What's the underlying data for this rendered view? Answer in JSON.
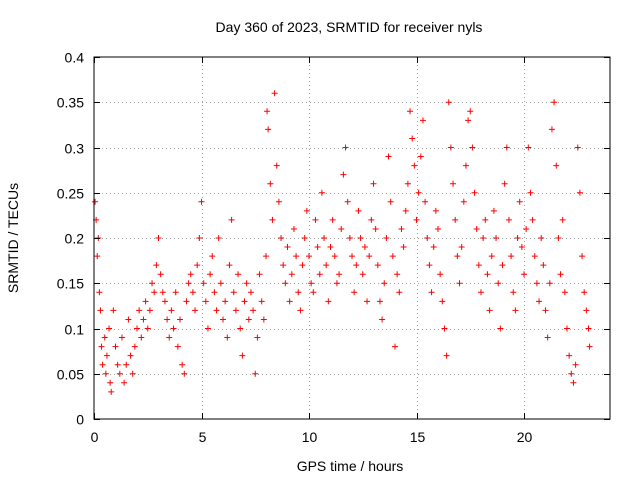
{
  "chart_data": {
    "type": "scatter",
    "title": "Day 360 of 2023, SRMTID for receiver nyls",
    "xlabel": "GPS time / hours",
    "ylabel": "SRMTID / TECUs",
    "xlim": [
      0,
      24
    ],
    "ylim": [
      0,
      0.4
    ],
    "xticks": [
      0,
      5,
      10,
      15,
      20
    ],
    "xtick_labels": [
      "0",
      "5",
      "10",
      "15",
      "20"
    ],
    "yticks": [
      0,
      0.05,
      0.1,
      0.15,
      0.2,
      0.25,
      0.3,
      0.35,
      0.4
    ],
    "ytick_labels": [
      "0",
      "0.05",
      "0.1",
      "0.15",
      "0.2",
      "0.25",
      "0.3",
      "0.35",
      "0.4"
    ],
    "grid": true,
    "marker": "+",
    "color": "#ff0000",
    "series": [
      {
        "name": "SRMTID",
        "points": [
          [
            0.05,
            0.24
          ],
          [
            0.1,
            0.22
          ],
          [
            0.15,
            0.18
          ],
          [
            0.2,
            0.2
          ],
          [
            0.25,
            0.14
          ],
          [
            0.3,
            0.12
          ],
          [
            0.35,
            0.08
          ],
          [
            0.4,
            0.06
          ],
          [
            0.5,
            0.09
          ],
          [
            0.55,
            0.05
          ],
          [
            0.6,
            0.07
          ],
          [
            0.7,
            0.1
          ],
          [
            0.75,
            0.04
          ],
          [
            0.8,
            0.03
          ],
          [
            0.9,
            0.12
          ],
          [
            1.0,
            0.08
          ],
          [
            1.1,
            0.06
          ],
          [
            1.2,
            0.05
          ],
          [
            1.3,
            0.09
          ],
          [
            1.4,
            0.04
          ],
          [
            1.5,
            0.06
          ],
          [
            1.6,
            0.11
          ],
          [
            1.7,
            0.07
          ],
          [
            1.8,
            0.05
          ],
          [
            1.9,
            0.08
          ],
          [
            2.0,
            0.1
          ],
          [
            2.1,
            0.12
          ],
          [
            2.2,
            0.09
          ],
          [
            2.3,
            0.11
          ],
          [
            2.4,
            0.13
          ],
          [
            2.5,
            0.1
          ],
          [
            2.6,
            0.12
          ],
          [
            2.7,
            0.15
          ],
          [
            2.8,
            0.14
          ],
          [
            2.9,
            0.17
          ],
          [
            3.0,
            0.2
          ],
          [
            3.1,
            0.16
          ],
          [
            3.2,
            0.14
          ],
          [
            3.3,
            0.13
          ],
          [
            3.4,
            0.11
          ],
          [
            3.5,
            0.09
          ],
          [
            3.6,
            0.12
          ],
          [
            3.7,
            0.1
          ],
          [
            3.8,
            0.14
          ],
          [
            3.9,
            0.08
          ],
          [
            4.0,
            0.11
          ],
          [
            4.1,
            0.06
          ],
          [
            4.2,
            0.05
          ],
          [
            4.3,
            0.13
          ],
          [
            4.4,
            0.15
          ],
          [
            4.5,
            0.16
          ],
          [
            4.6,
            0.14
          ],
          [
            4.7,
            0.12
          ],
          [
            4.8,
            0.17
          ],
          [
            4.9,
            0.2
          ],
          [
            5.0,
            0.24
          ],
          [
            5.1,
            0.15
          ],
          [
            5.2,
            0.13
          ],
          [
            5.3,
            0.1
          ],
          [
            5.4,
            0.16
          ],
          [
            5.5,
            0.18
          ],
          [
            5.6,
            0.14
          ],
          [
            5.7,
            0.12
          ],
          [
            5.8,
            0.2
          ],
          [
            5.9,
            0.15
          ],
          [
            6.0,
            0.11
          ],
          [
            6.1,
            0.13
          ],
          [
            6.2,
            0.09
          ],
          [
            6.3,
            0.17
          ],
          [
            6.4,
            0.22
          ],
          [
            6.5,
            0.14
          ],
          [
            6.6,
            0.12
          ],
          [
            6.7,
            0.16
          ],
          [
            6.8,
            0.1
          ],
          [
            6.9,
            0.07
          ],
          [
            7.0,
            0.13
          ],
          [
            7.1,
            0.15
          ],
          [
            7.2,
            0.11
          ],
          [
            7.3,
            0.14
          ],
          [
            7.4,
            0.12
          ],
          [
            7.5,
            0.05
          ],
          [
            7.6,
            0.09
          ],
          [
            7.7,
            0.16
          ],
          [
            7.8,
            0.13
          ],
          [
            7.9,
            0.11
          ],
          [
            8.0,
            0.18
          ],
          [
            8.05,
            0.34
          ],
          [
            8.1,
            0.32
          ],
          [
            8.2,
            0.26
          ],
          [
            8.3,
            0.22
          ],
          [
            8.4,
            0.36
          ],
          [
            8.5,
            0.28
          ],
          [
            8.6,
            0.24
          ],
          [
            8.7,
            0.2
          ],
          [
            8.8,
            0.17
          ],
          [
            8.9,
            0.15
          ],
          [
            9.0,
            0.19
          ],
          [
            9.1,
            0.13
          ],
          [
            9.2,
            0.16
          ],
          [
            9.3,
            0.21
          ],
          [
            9.4,
            0.18
          ],
          [
            9.5,
            0.14
          ],
          [
            9.6,
            0.12
          ],
          [
            9.7,
            0.17
          ],
          [
            9.8,
            0.2
          ],
          [
            9.9,
            0.23
          ],
          [
            10.0,
            0.18
          ],
          [
            10.1,
            0.15
          ],
          [
            10.2,
            0.14
          ],
          [
            10.3,
            0.22
          ],
          [
            10.4,
            0.19
          ],
          [
            10.5,
            0.16
          ],
          [
            10.6,
            0.25
          ],
          [
            10.7,
            0.2
          ],
          [
            10.8,
            0.17
          ],
          [
            10.9,
            0.13
          ],
          [
            11.0,
            0.19
          ],
          [
            11.1,
            0.22
          ],
          [
            11.2,
            0.18
          ],
          [
            11.3,
            0.15
          ],
          [
            11.4,
            0.16
          ],
          [
            11.5,
            0.21
          ],
          [
            11.6,
            0.27
          ],
          [
            11.7,
            0.3
          ],
          [
            11.8,
            0.24
          ],
          [
            11.9,
            0.2
          ],
          [
            12.0,
            0.18
          ],
          [
            12.1,
            0.14
          ],
          [
            12.2,
            0.17
          ],
          [
            12.3,
            0.23
          ],
          [
            12.4,
            0.2
          ],
          [
            12.5,
            0.16
          ],
          [
            12.6,
            0.19
          ],
          [
            12.7,
            0.13
          ],
          [
            12.8,
            0.18
          ],
          [
            12.9,
            0.22
          ],
          [
            13.0,
            0.26
          ],
          [
            13.1,
            0.21
          ],
          [
            13.2,
            0.17
          ],
          [
            13.3,
            0.13
          ],
          [
            13.4,
            0.11
          ],
          [
            13.5,
            0.15
          ],
          [
            13.6,
            0.2
          ],
          [
            13.7,
            0.29
          ],
          [
            13.8,
            0.24
          ],
          [
            13.9,
            0.18
          ],
          [
            14.0,
            0.08
          ],
          [
            14.1,
            0.16
          ],
          [
            14.2,
            0.14
          ],
          [
            14.3,
            0.21
          ],
          [
            14.4,
            0.19
          ],
          [
            14.5,
            0.23
          ],
          [
            14.6,
            0.26
          ],
          [
            14.7,
            0.34
          ],
          [
            14.8,
            0.31
          ],
          [
            14.9,
            0.28
          ],
          [
            15.0,
            0.22
          ],
          [
            15.1,
            0.25
          ],
          [
            15.2,
            0.29
          ],
          [
            15.3,
            0.33
          ],
          [
            15.4,
            0.24
          ],
          [
            15.5,
            0.2
          ],
          [
            15.6,
            0.17
          ],
          [
            15.7,
            0.14
          ],
          [
            15.8,
            0.19
          ],
          [
            15.9,
            0.23
          ],
          [
            16.0,
            0.21
          ],
          [
            16.1,
            0.16
          ],
          [
            16.2,
            0.13
          ],
          [
            16.3,
            0.1
          ],
          [
            16.4,
            0.07
          ],
          [
            16.5,
            0.35
          ],
          [
            16.6,
            0.3
          ],
          [
            16.7,
            0.26
          ],
          [
            16.8,
            0.22
          ],
          [
            16.9,
            0.18
          ],
          [
            17.0,
            0.15
          ],
          [
            17.1,
            0.19
          ],
          [
            17.2,
            0.24
          ],
          [
            17.3,
            0.28
          ],
          [
            17.4,
            0.33
          ],
          [
            17.5,
            0.34
          ],
          [
            17.6,
            0.3
          ],
          [
            17.7,
            0.25
          ],
          [
            17.8,
            0.21
          ],
          [
            17.9,
            0.17
          ],
          [
            18.0,
            0.14
          ],
          [
            18.1,
            0.2
          ],
          [
            18.2,
            0.22
          ],
          [
            18.3,
            0.16
          ],
          [
            18.4,
            0.12
          ],
          [
            18.5,
            0.18
          ],
          [
            18.6,
            0.23
          ],
          [
            18.7,
            0.2
          ],
          [
            18.8,
            0.15
          ],
          [
            18.9,
            0.1
          ],
          [
            19.0,
            0.17
          ],
          [
            19.1,
            0.26
          ],
          [
            19.2,
            0.3
          ],
          [
            19.3,
            0.22
          ],
          [
            19.4,
            0.18
          ],
          [
            19.5,
            0.14
          ],
          [
            19.6,
            0.12
          ],
          [
            19.7,
            0.2
          ],
          [
            19.8,
            0.24
          ],
          [
            19.9,
            0.19
          ],
          [
            20.0,
            0.16
          ],
          [
            20.1,
            0.21
          ],
          [
            20.2,
            0.3
          ],
          [
            20.3,
            0.25
          ],
          [
            20.4,
            0.22
          ],
          [
            20.5,
            0.18
          ],
          [
            20.6,
            0.15
          ],
          [
            20.7,
            0.13
          ],
          [
            20.8,
            0.2
          ],
          [
            20.9,
            0.17
          ],
          [
            21.0,
            0.12
          ],
          [
            21.1,
            0.09
          ],
          [
            21.2,
            0.15
          ],
          [
            21.3,
            0.32
          ],
          [
            21.4,
            0.35
          ],
          [
            21.5,
            0.28
          ],
          [
            21.6,
            0.2
          ],
          [
            21.7,
            0.16
          ],
          [
            21.8,
            0.22
          ],
          [
            21.9,
            0.14
          ],
          [
            22.0,
            0.1
          ],
          [
            22.1,
            0.07
          ],
          [
            22.2,
            0.05
          ],
          [
            22.3,
            0.04
          ],
          [
            22.4,
            0.06
          ],
          [
            22.5,
            0.3
          ],
          [
            22.6,
            0.25
          ],
          [
            22.7,
            0.18
          ],
          [
            22.8,
            0.14
          ],
          [
            22.9,
            0.12
          ],
          [
            23.0,
            0.1
          ],
          [
            23.05,
            0.08
          ]
        ]
      }
    ]
  }
}
